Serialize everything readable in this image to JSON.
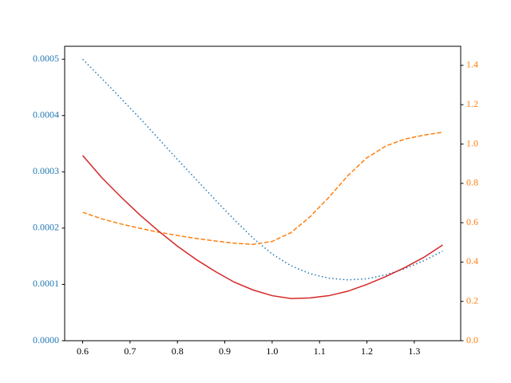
{
  "chart_data": {
    "type": "line",
    "x": [
      0.6,
      0.64,
      0.68,
      0.72,
      0.76,
      0.8,
      0.84,
      0.88,
      0.92,
      0.96,
      1.0,
      1.04,
      1.08,
      1.12,
      1.16,
      1.2,
      1.24,
      1.28,
      1.32,
      1.36
    ],
    "series": [
      {
        "color": "#1f77b4",
        "style": "dotted",
        "axis": "y",
        "values": [
          0.0005,
          0.000466,
          0.000431,
          0.000396,
          0.000359,
          0.000322,
          0.000286,
          0.00025,
          0.000215,
          0.000182,
          0.000154,
          0.000133,
          0.000119,
          0.000111,
          0.000108,
          0.00011,
          0.000117,
          0.000128,
          0.000142,
          0.000159
        ]
      },
      {
        "color": "#ff7f0e",
        "style": "dashed",
        "axis": "y2",
        "values": [
          0.653,
          0.62,
          0.594,
          0.572,
          0.552,
          0.535,
          0.52,
          0.507,
          0.496,
          0.49,
          0.505,
          0.55,
          0.63,
          0.73,
          0.84,
          0.93,
          0.99,
          1.025,
          1.045,
          1.06
        ]
      },
      {
        "color": "#d62728",
        "style": "solid",
        "axis": "y",
        "values": [
          0.000329,
          0.00029,
          0.000256,
          0.000224,
          0.000195,
          0.000168,
          0.000144,
          0.000123,
          0.000104,
          9e-05,
          8e-05,
          7.5e-05,
          7.6e-05,
          8e-05,
          8.8e-05,
          0.0001,
          0.000114,
          0.00013,
          0.000148,
          0.00017
        ]
      }
    ],
    "xlim": [
      0.562,
      1.398
    ],
    "xticks": [
      0.6,
      0.7,
      0.8,
      0.9,
      {
        "value": 1,
        "label": "1.0"
      },
      1.1,
      1.2,
      1.3
    ],
    "ylim": [
      0,
      0.000523
    ],
    "yticks": [
      {
        "value": 0,
        "label": "0.0000"
      },
      {
        "value": 0.0001,
        "label": "0.0001"
      },
      {
        "value": 0.0002,
        "label": "0.0002"
      },
      {
        "value": 0.0003,
        "label": "0.0003"
      },
      {
        "value": 0.0004,
        "label": "0.0004"
      },
      {
        "value": 0.0005,
        "label": "0.0005"
      }
    ],
    "y_color": "#1f77b4",
    "y2lim": [
      0,
      1.497
    ],
    "y2ticks": [
      {
        "value": 0,
        "label": "0.0"
      },
      0.2,
      0.4,
      0.6,
      0.8,
      {
        "value": 1,
        "label": "1.0"
      },
      1.2,
      1.4
    ],
    "y2_color": "#ff7f0e"
  }
}
